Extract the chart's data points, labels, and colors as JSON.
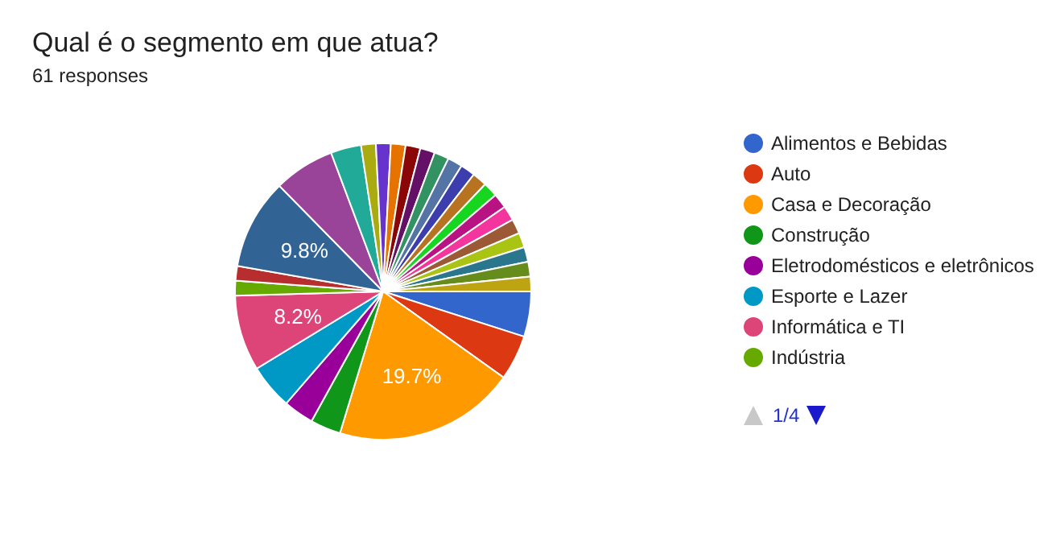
{
  "chart_data": {
    "type": "pie",
    "title": "Qual é o segmento em que atua?",
    "subtitle": "61 responses",
    "categories": [
      "Alimentos e Bebidas",
      "Auto",
      "Casa e Decoração",
      "Construção",
      "Eletrodomésticos e eletrônicos",
      "Esporte e Lazer",
      "Informática e TI",
      "Indústria",
      null,
      null,
      null,
      null,
      null,
      null,
      null,
      null,
      null,
      null,
      null,
      null,
      null,
      null,
      null,
      null,
      null,
      null,
      null,
      null,
      null
    ],
    "values": [
      4.9,
      4.9,
      19.7,
      3.3,
      3.3,
      4.9,
      8.2,
      1.6,
      1.6,
      9.8,
      6.6,
      3.3,
      1.6,
      1.6,
      1.6,
      1.6,
      1.6,
      1.6,
      1.6,
      1.6,
      1.6,
      1.6,
      1.6,
      1.6,
      1.6,
      1.6,
      1.6,
      1.6,
      1.6
    ],
    "colors": [
      "#3366cc",
      "#dc3912",
      "#ff9900",
      "#109618",
      "#990099",
      "#0099c6",
      "#dd4477",
      "#66aa00",
      "#b82e2e",
      "#316395",
      "#994499",
      "#22aa99",
      "#aaaa11",
      "#6633cc",
      "#e67300",
      "#8b0707",
      "#651067",
      "#329262",
      "#5574a6",
      "#3b3eac",
      "#b77322",
      "#16d620",
      "#b91383",
      "#f4359e",
      "#9c5935",
      "#a9c413",
      "#2a778d",
      "#668d1c",
      "#bea413"
    ],
    "value_labels": [
      null,
      null,
      "19.7%",
      null,
      null,
      null,
      "8.2%",
      null,
      null,
      "9.8%",
      null,
      null,
      null,
      null,
      null,
      null,
      null,
      null,
      null,
      null,
      null,
      null,
      null,
      null,
      null,
      null,
      null,
      null,
      null
    ],
    "legend": "right",
    "annotations": [
      "1/4"
    ]
  }
}
